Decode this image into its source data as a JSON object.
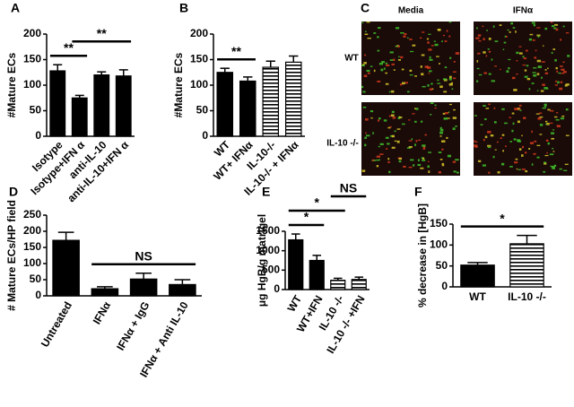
{
  "chart_data": [
    {
      "type": "bar",
      "panel": "A",
      "ylabel": "#Mature ECs",
      "categories": [
        "Isotype",
        "Isotype+IFN α",
        "anti-IL-10",
        "anti-IL-10+IFN α"
      ],
      "values": [
        128,
        75,
        120,
        118
      ],
      "errors": [
        12,
        5,
        6,
        12
      ],
      "fills": [
        "solid",
        "solid",
        "solid",
        "solid"
      ],
      "color": "#000000",
      "ylim": [
        0,
        200
      ],
      "yticks": [
        0,
        50,
        100,
        150,
        200
      ],
      "annotations": [
        {
          "text": "**",
          "from": 0,
          "to": 1
        },
        {
          "text": "**",
          "from": 1,
          "to": 3
        }
      ]
    },
    {
      "type": "bar",
      "panel": "B",
      "ylabel": "#Mature ECs",
      "categories": [
        "WT",
        "WT+ IFNα",
        "IL-10-/-",
        "IL-10-/- + IFNα"
      ],
      "values": [
        125,
        108,
        135,
        145
      ],
      "errors": [
        8,
        8,
        12,
        12
      ],
      "fills": [
        "solid",
        "solid",
        "striped",
        "striped"
      ],
      "color": "#000000",
      "ylim": [
        0,
        200
      ],
      "yticks": [
        0,
        50,
        100,
        150,
        200
      ],
      "annotations": [
        {
          "text": "**",
          "from": 0,
          "to": 1
        }
      ]
    },
    {
      "type": "bar",
      "panel": "D",
      "ylabel": "# Mature ECs/HP field",
      "categories": [
        "Untreated",
        "IFNα",
        "IFNα + IgG",
        "IFNα + Anti IL-10"
      ],
      "values": [
        172,
        22,
        52,
        35
      ],
      "errors": [
        25,
        6,
        18,
        15
      ],
      "fills": [
        "solid",
        "solid",
        "solid",
        "solid"
      ],
      "color": "#000000",
      "ylim": [
        0,
        250
      ],
      "yticks": [
        0,
        50,
        100,
        150,
        200,
        250
      ],
      "annotations": [
        {
          "text": "NS",
          "from": 1,
          "to": 3
        }
      ]
    },
    {
      "type": "bar",
      "panel": "E",
      "ylabel": "μg HgB/g matrigel",
      "categories": [
        "WT",
        "WT+IFN",
        "IL-10 -/-",
        "IL-10 -/- +IFN"
      ],
      "values": [
        1280,
        750,
        240,
        260
      ],
      "errors": [
        150,
        130,
        50,
        60
      ],
      "fills": [
        "solid",
        "solid",
        "striped",
        "striped"
      ],
      "color": "#000000",
      "ylim": [
        0,
        1500
      ],
      "yticks": [
        0,
        500,
        1000,
        1500
      ],
      "annotations": [
        {
          "text": "*",
          "from": 0,
          "to": 1
        },
        {
          "text": "*",
          "from": 0,
          "to": 2
        },
        {
          "text": "NS",
          "from": 2,
          "to": 3
        }
      ]
    },
    {
      "type": "bar",
      "panel": "F",
      "ylabel": "% decrease in [HgB]",
      "categories": [
        "WT",
        "IL-10 -/-"
      ],
      "values": [
        52,
        103
      ],
      "errors": [
        6,
        20
      ],
      "fills": [
        "solid",
        "striped"
      ],
      "color": "#000000",
      "ylim": [
        0,
        150
      ],
      "yticks": [
        0,
        50,
        100,
        150
      ],
      "annotations": [
        {
          "text": "*",
          "from": 0,
          "to": 1
        }
      ]
    }
  ],
  "image_panel": {
    "panel": "C",
    "columns": [
      "Media",
      "IFNα"
    ],
    "rows": [
      "WT",
      "IL-10 -/-"
    ]
  }
}
